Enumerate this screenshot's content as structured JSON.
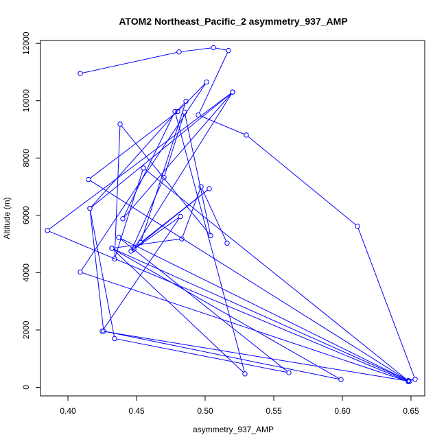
{
  "chart_data": {
    "type": "line",
    "title": "ATOM2 Northeast_Pacific_2 asymmetry_937_AMP",
    "xlabel": "asymmetry_937_AMP",
    "ylabel": "Altitude (m)",
    "xlim": [
      0.38,
      0.66
    ],
    "ylim": [
      -300,
      12100
    ],
    "xticks": [
      0.4,
      0.45,
      0.5,
      0.55,
      0.6,
      0.65
    ],
    "xtick_labels": [
      "0.40",
      "0.45",
      "0.50",
      "0.55",
      "0.60",
      "0.65"
    ],
    "yticks": [
      0,
      2000,
      4000,
      6000,
      8000,
      10000,
      12000
    ],
    "ytick_labels": [
      "0",
      "2000",
      "4000",
      "6000",
      "8000",
      "10000",
      "12000"
    ],
    "series": [
      {
        "color": "#0000ff",
        "marker": "open-circle",
        "x": [
          0.409,
          0.481,
          0.506,
          0.517,
          0.495,
          0.53,
          0.611,
          0.653,
          0.648,
          0.415,
          0.48,
          0.501,
          0.409,
          0.648,
          0.385,
          0.52,
          0.416,
          0.434,
          0.561,
          0.437,
          0.648,
          0.455,
          0.434,
          0.438,
          0.504,
          0.485,
          0.47,
          0.446,
          0.503,
          0.453,
          0.486,
          0.416,
          0.426,
          0.599,
          0.432,
          0.649,
          0.425,
          0.482,
          0.448,
          0.52,
          0.44,
          0.478,
          0.529,
          0.432,
          0.483,
          0.497,
          0.516
        ],
        "y": [
          10950,
          11700,
          11850,
          11750,
          9500,
          8800,
          5620,
          280,
          230,
          7250,
          9620,
          10650,
          4020,
          200,
          5470,
          10300,
          6240,
          1700,
          510,
          5230,
          230,
          7650,
          4480,
          9180,
          5290,
          9600,
          7320,
          4750,
          6930,
          5050,
          9980,
          6240,
          1960,
          270,
          4850,
          210,
          1960,
          5960,
          4820,
          10300,
          5880,
          9620,
          470,
          4850,
          5180,
          7000,
          5030
        ]
      }
    ]
  }
}
